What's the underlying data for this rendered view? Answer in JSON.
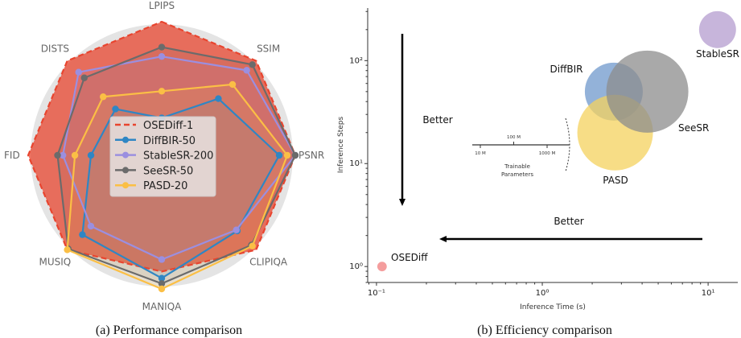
{
  "captions": {
    "a": "(a) Performance comparison",
    "b": "(b) Efficiency comparison"
  },
  "chart_data": [
    {
      "type": "radar",
      "title": "",
      "axes": [
        "LPIPS",
        "SSIM",
        "PSNR",
        "CLIPIQA",
        "MANIQA",
        "MUSIQ",
        "FID",
        "DISTS"
      ],
      "value_scale": "normalized 0-1 (outer ring = best)",
      "legend_placement": "center",
      "series": [
        {
          "name": "OSEDiff-1",
          "color": "#e8452f",
          "style": "dashed",
          "values": [
            1.0,
            1.0,
            1.0,
            1.0,
            0.87,
            1.0,
            1.0,
            1.0
          ]
        },
        {
          "name": "DiffBIR-50",
          "color": "#2f86c4",
          "style": "solid",
          "values": [
            0.28,
            0.6,
            0.88,
            0.8,
            0.92,
            0.84,
            0.53,
            0.49
          ]
        },
        {
          "name": "StableSR-200",
          "color": "#9b8fe0",
          "style": "solid",
          "values": [
            0.74,
            0.9,
            1.0,
            0.79,
            0.78,
            0.75,
            0.74,
            0.88
          ]
        },
        {
          "name": "SeeSR-50",
          "color": "#6b6b6b",
          "style": "solid",
          "values": [
            0.81,
            0.96,
            1.0,
            0.95,
            0.96,
            0.99,
            0.78,
            0.82
          ]
        },
        {
          "name": "PASD-20",
          "color": "#fbbf45",
          "style": "solid",
          "values": [
            0.48,
            0.75,
            0.94,
            0.96,
            1.0,
            1.0,
            0.65,
            0.62
          ]
        }
      ]
    },
    {
      "type": "scatter",
      "subtype": "bubble",
      "title": "",
      "xlabel": "Inference Time (s)",
      "ylabel": "Inference Steps",
      "xscale": "log",
      "yscale": "log",
      "xlim": [
        0.0885,
        15.1
      ],
      "ylim": [
        0.7,
        324
      ],
      "xticks": [
        {
          "value": 0.1,
          "label": "10⁻¹"
        },
        {
          "value": 1,
          "label": "10⁰"
        },
        {
          "value": 10,
          "label": "10¹"
        }
      ],
      "yticks": [
        {
          "value": 1,
          "label": "10⁰"
        },
        {
          "value": 10,
          "label": "10¹"
        },
        {
          "value": 100,
          "label": "10²"
        }
      ],
      "grid": false,
      "size_legend": {
        "title_line1": "Trainable",
        "title_line2": "Parameters",
        "ticks": [
          {
            "value": 10,
            "label": "10 M"
          },
          {
            "value": 100,
            "label": "100 M"
          },
          {
            "value": 1000,
            "label": "1000 M"
          }
        ]
      },
      "annotations": [
        {
          "text": "Better",
          "direction": "down"
        },
        {
          "text": "Better",
          "direction": "left"
        }
      ],
      "points": [
        {
          "name": "OSEDiff",
          "time_s": 0.108,
          "steps": 1,
          "params_M": 10,
          "color": "#f07c7c"
        },
        {
          "name": "StableSR",
          "time_s": 11.4,
          "steps": 200,
          "params_M": 152,
          "color": "#b49ccf"
        },
        {
          "name": "DiffBIR",
          "time_s": 2.7,
          "steps": 50,
          "params_M": 374,
          "color": "#6f98cc"
        },
        {
          "name": "PASD",
          "time_s": 2.75,
          "steps": 20,
          "params_M": 637,
          "color": "#f4d15e"
        },
        {
          "name": "SeeSR",
          "time_s": 4.3,
          "steps": 50,
          "params_M": 750,
          "color": "#8c8c8c"
        }
      ]
    }
  ]
}
